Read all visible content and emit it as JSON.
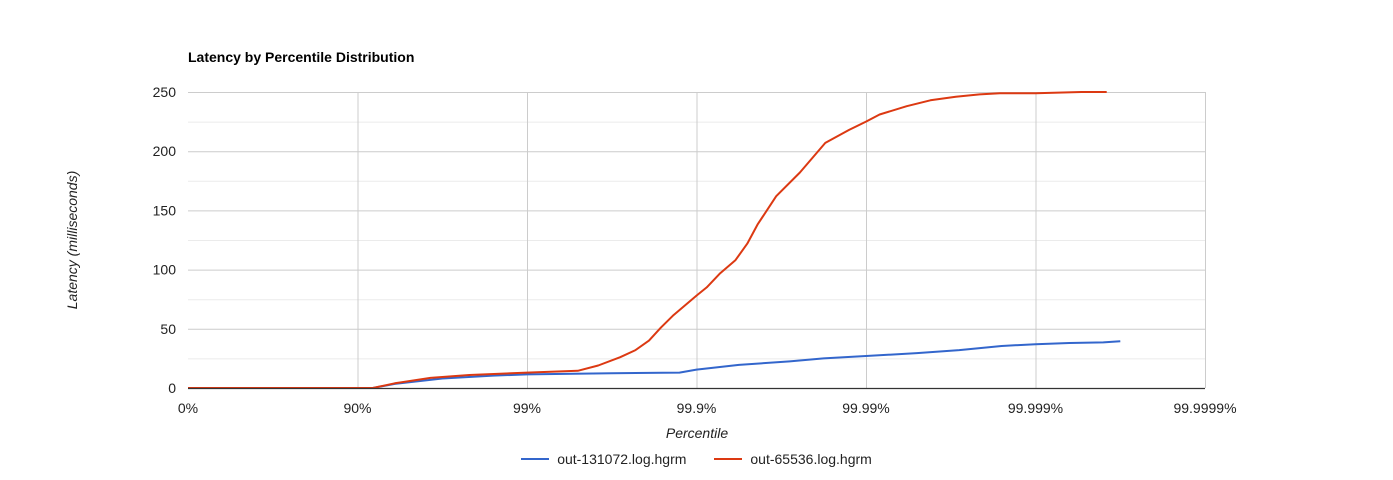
{
  "chart_data": {
    "type": "line",
    "title": "Latency by Percentile Distribution",
    "xlabel": "Percentile",
    "ylabel": "Latency (milliseconds)",
    "ylim": [
      0,
      250
    ],
    "y_ticks": [
      0,
      50,
      100,
      150,
      200,
      250
    ],
    "x_scale": "log-inverse percentile (decades of nines)",
    "x_ticks": [
      {
        "pos": 0,
        "label": "0%"
      },
      {
        "pos": 1,
        "label": "90%"
      },
      {
        "pos": 2,
        "label": "99%"
      },
      {
        "pos": 3,
        "label": "99.9%"
      },
      {
        "pos": 4,
        "label": "99.99%"
      },
      {
        "pos": 5,
        "label": "99.999%"
      },
      {
        "pos": 6,
        "label": "99.9999%"
      }
    ],
    "grid": true,
    "legend_position": "bottom",
    "series": [
      {
        "name": "out-131072.log.hgrm",
        "color": "#3366cc",
        "points": [
          [
            0,
            0
          ],
          [
            1.09,
            0
          ],
          [
            1.22,
            3.5
          ],
          [
            1.5,
            8
          ],
          [
            1.8,
            10.5
          ],
          [
            2.0,
            11.5
          ],
          [
            2.5,
            12.5
          ],
          [
            2.8,
            12.8
          ],
          [
            2.9,
            13
          ],
          [
            3.0,
            15.5
          ],
          [
            3.25,
            19.5
          ],
          [
            3.55,
            22.5
          ],
          [
            3.75,
            25
          ],
          [
            4.0,
            27
          ],
          [
            4.3,
            29.5
          ],
          [
            4.55,
            32
          ],
          [
            4.8,
            35.5
          ],
          [
            5.0,
            37
          ],
          [
            5.2,
            38
          ],
          [
            5.4,
            38.5
          ],
          [
            5.5,
            39.5
          ]
        ]
      },
      {
        "name": "out-65536.log.hgrm",
        "color": "#dc3912",
        "points": [
          [
            0,
            0
          ],
          [
            1.09,
            0
          ],
          [
            1.22,
            4
          ],
          [
            1.43,
            8.5
          ],
          [
            1.66,
            11
          ],
          [
            2.0,
            13
          ],
          [
            2.3,
            14.5
          ],
          [
            2.42,
            19
          ],
          [
            2.55,
            26
          ],
          [
            2.64,
            32
          ],
          [
            2.72,
            40
          ],
          [
            2.79,
            51
          ],
          [
            2.86,
            61
          ],
          [
            3.0,
            78
          ],
          [
            3.06,
            85
          ],
          [
            3.14,
            97
          ],
          [
            3.23,
            108
          ],
          [
            3.3,
            122
          ],
          [
            3.36,
            138
          ],
          [
            3.47,
            162
          ],
          [
            3.61,
            182
          ],
          [
            3.76,
            207
          ],
          [
            3.9,
            218
          ],
          [
            4.0,
            225
          ],
          [
            4.08,
            231
          ],
          [
            4.24,
            238
          ],
          [
            4.38,
            243
          ],
          [
            4.53,
            246
          ],
          [
            4.67,
            248
          ],
          [
            4.79,
            249
          ],
          [
            5.0,
            249
          ],
          [
            5.27,
            250
          ],
          [
            5.42,
            250
          ]
        ]
      }
    ]
  },
  "legend": {
    "items": [
      {
        "label": "out-131072.log.hgrm",
        "color": "#3366cc"
      },
      {
        "label": "out-65536.log.hgrm",
        "color": "#dc3912"
      }
    ]
  }
}
